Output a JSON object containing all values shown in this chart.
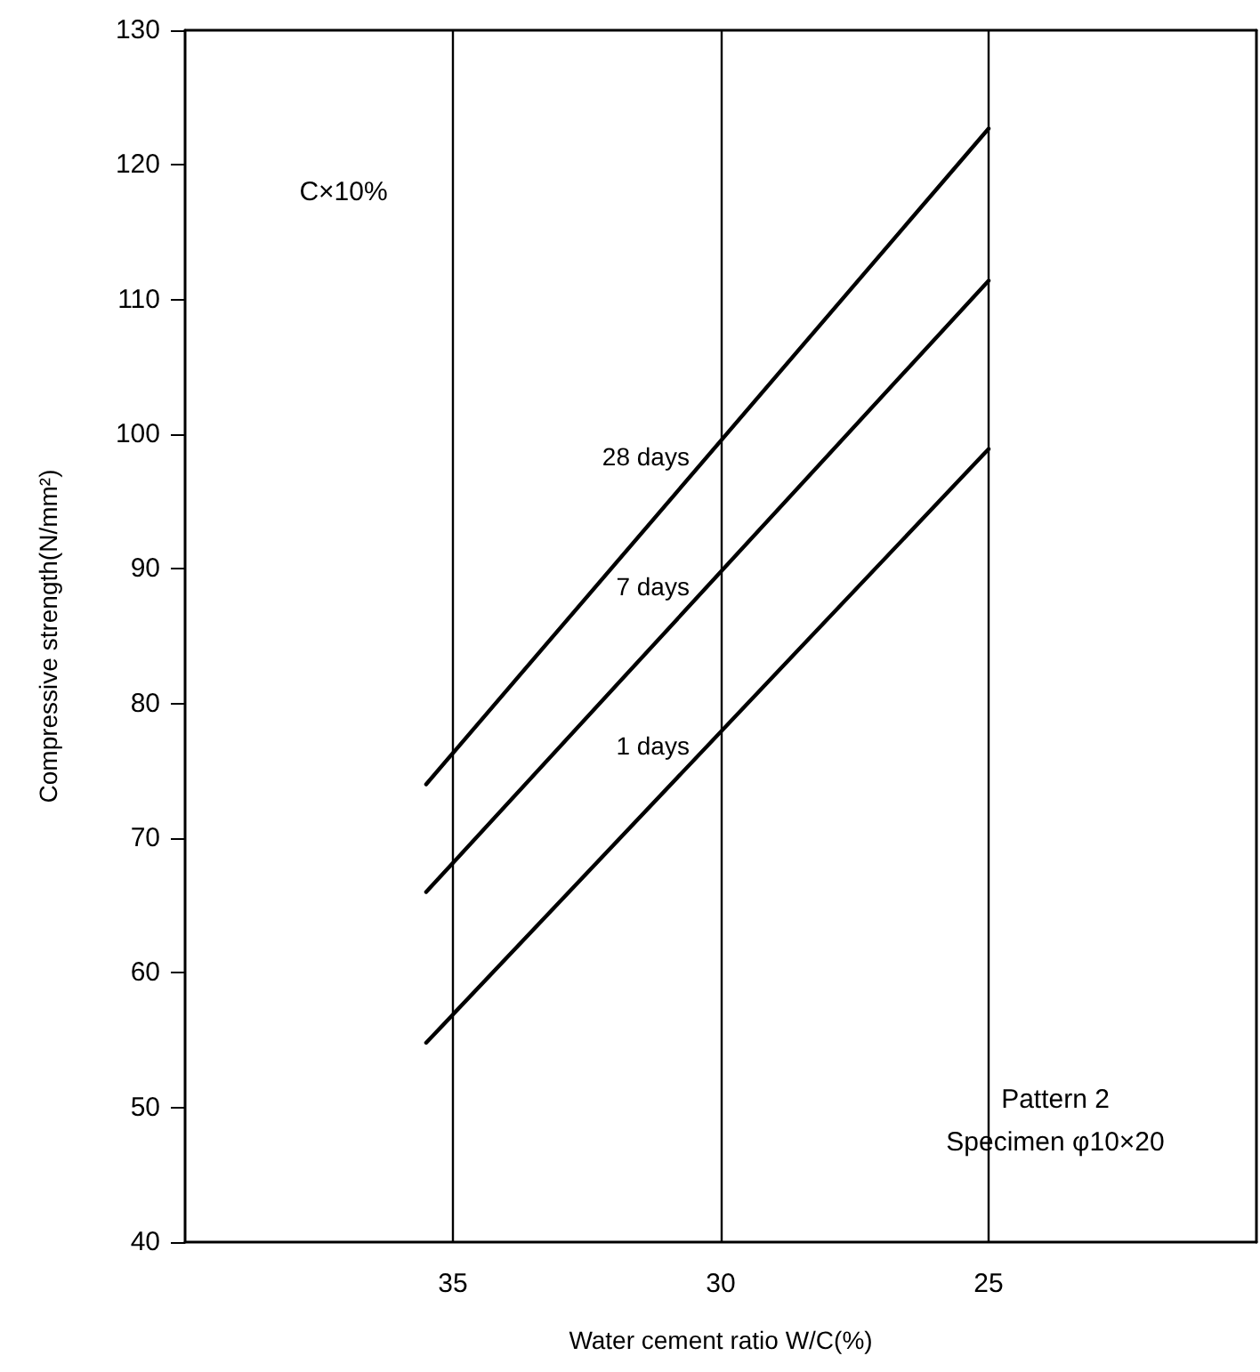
{
  "chart_data": {
    "type": "line",
    "xlabel": "Water cement ratio W/C(%)",
    "ylabel": "Compressive strength(N/mm²)",
    "xlim": [
      40,
      20
    ],
    "xticks": [
      35,
      30,
      25
    ],
    "ylim": [
      40,
      130
    ],
    "yticks": [
      40,
      50,
      60,
      70,
      80,
      90,
      100,
      110,
      120,
      130
    ],
    "grid": "x",
    "legend": false,
    "marker": "none",
    "line_style": "solid",
    "x": [
      35.5,
      25
    ],
    "series": [
      {
        "name": "28 days",
        "color": "#000000",
        "values": [
          74,
          122.7
        ]
      },
      {
        "name": "7 days",
        "color": "#000000",
        "values": [
          66,
          111.4
        ]
      },
      {
        "name": "1 days",
        "color": "#000000",
        "values": [
          54.8,
          98.9
        ]
      }
    ],
    "annotations": [
      "C×10%",
      "Pattern 2\nSpecimen φ10×20"
    ]
  }
}
